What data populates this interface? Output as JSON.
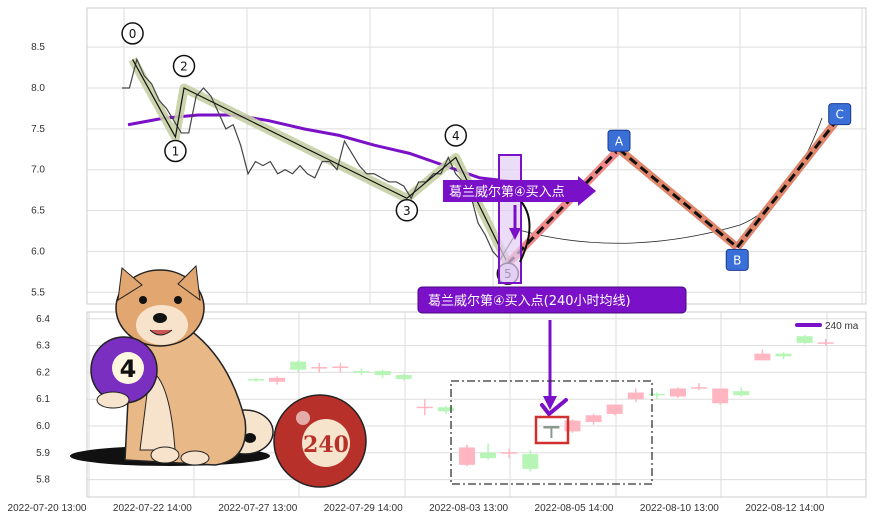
{
  "chart_data": [
    {
      "type": "line",
      "panel": "top",
      "ylim": [
        5.45,
        8.95
      ],
      "y_ticks": [
        "8.5",
        "8.0",
        "7.5",
        "7.0",
        "6.5",
        "6.0",
        "5.5"
      ],
      "grid": true,
      "price_series": [
        8.0,
        8.0,
        8.35,
        8.15,
        8.05,
        7.85,
        7.75,
        7.6,
        7.45,
        7.45,
        7.9,
        8.0,
        7.9,
        7.7,
        7.5,
        7.55,
        7.3,
        6.95,
        7.1,
        7.05,
        7.1,
        6.95,
        7.0,
        6.95,
        7.05,
        6.95,
        6.9,
        7.1,
        7.1,
        7.0,
        7.35,
        7.2,
        7.05,
        6.95,
        6.95,
        6.9,
        6.85,
        6.85,
        6.8,
        6.65,
        6.85,
        6.85,
        6.95,
        6.95,
        7.15,
        6.95,
        6.85,
        6.7,
        6.35,
        6.2,
        6.0,
        5.9,
        6.05,
        6.2
      ],
      "ma240_series": [
        7.55,
        7.63,
        7.67,
        7.67,
        7.6,
        7.5,
        7.42,
        7.3,
        7.2,
        7.05,
        6.9,
        6.85
      ],
      "wave_points": [
        {
          "label": "0",
          "time": "2022-07-20 17:00",
          "value": 8.35
        },
        {
          "label": "1",
          "time": "2022-07-21 13:00",
          "value": 7.4
        },
        {
          "label": "2",
          "time": "2022-07-21 17:00",
          "value": 8.0
        },
        {
          "label": "3",
          "time": "2022-07-28 23:00",
          "value": 6.65
        },
        {
          "label": "4",
          "time": "2022-07-30 09:00",
          "value": 7.15
        },
        {
          "label": "5",
          "time": "2022-08-01 20:00",
          "value": 5.85
        }
      ],
      "projection_points": [
        {
          "label": "A",
          "time": "2022-08-05 00:00",
          "value": 7.25
        },
        {
          "label": "B",
          "time": "2022-08-09 18:00",
          "value": 6.05
        },
        {
          "label": "C",
          "time": "2022-08-12 05:00",
          "value": 7.65
        }
      ],
      "annotation_arrow": "葛兰威尔第④买入点",
      "annotation_box": "葛兰威尔第④买入点(240小时均线)",
      "colors": {
        "price": "#444444",
        "ma240": "#7a10c8",
        "wave_highlight": "#c5cfa4",
        "projection": "#e0876b",
        "projection_first": "#f08a8a",
        "label_box": "#3a6fd8",
        "annotation": "#7a10c8"
      }
    },
    {
      "type": "candlestick",
      "panel": "bottom",
      "ylim": [
        5.76,
        6.42
      ],
      "y_ticks": [
        "6.4",
        "6.3",
        "6.2",
        "6.1",
        "6.0",
        "5.9",
        "5.8"
      ],
      "legend": {
        "label": "240 ma",
        "position": "top-right",
        "color": "#7a10c8"
      },
      "candles": [
        {
          "o": 6.17,
          "c": 6.175,
          "h": 6.18,
          "l": 6.165,
          "k": "green"
        },
        {
          "o": 6.165,
          "c": 6.18,
          "h": 6.185,
          "l": 6.155,
          "k": "red"
        },
        {
          "o": 6.21,
          "c": 6.24,
          "h": 6.245,
          "l": 6.2,
          "k": "green"
        },
        {
          "o": 6.215,
          "c": 6.22,
          "h": 6.235,
          "l": 6.2,
          "k": "red"
        },
        {
          "o": 6.22,
          "c": 6.222,
          "h": 6.235,
          "l": 6.2,
          "k": "red"
        },
        {
          "o": 6.2,
          "c": 6.205,
          "h": 6.215,
          "l": 6.19,
          "k": "green"
        },
        {
          "o": 6.19,
          "c": 6.205,
          "h": 6.21,
          "l": 6.18,
          "k": "green"
        },
        {
          "o": 6.175,
          "c": 6.19,
          "h": 6.195,
          "l": 6.17,
          "k": "green"
        },
        {
          "o": 6.07,
          "c": 6.072,
          "h": 6.1,
          "l": 6.04,
          "k": "red"
        },
        {
          "o": 6.055,
          "c": 6.07,
          "h": 6.075,
          "l": 6.045,
          "k": "green"
        },
        {
          "o": 5.855,
          "c": 5.92,
          "h": 5.93,
          "l": 5.85,
          "k": "red"
        },
        {
          "o": 5.88,
          "c": 5.9,
          "h": 5.935,
          "l": 5.875,
          "k": "green"
        },
        {
          "o": 5.9,
          "c": 5.902,
          "h": 5.915,
          "l": 5.88,
          "k": "red"
        },
        {
          "o": 5.84,
          "c": 5.895,
          "h": 5.91,
          "l": 5.83,
          "k": "green"
        },
        {
          "o": 5.995,
          "c": 6.0,
          "h": 6.0,
          "l": 5.955,
          "k": "gray"
        },
        {
          "o": 5.98,
          "c": 6.02,
          "h": 6.025,
          "l": 5.975,
          "k": "red"
        },
        {
          "o": 6.015,
          "c": 6.04,
          "h": 6.045,
          "l": 6.005,
          "k": "red"
        },
        {
          "o": 6.045,
          "c": 6.08,
          "h": 6.08,
          "l": 6.04,
          "k": "red"
        },
        {
          "o": 6.1,
          "c": 6.125,
          "h": 6.14,
          "l": 6.09,
          "k": "red"
        },
        {
          "o": 6.115,
          "c": 6.12,
          "h": 6.125,
          "l": 6.1,
          "k": "green"
        },
        {
          "o": 6.11,
          "c": 6.14,
          "h": 6.145,
          "l": 6.105,
          "k": "red"
        },
        {
          "o": 6.14,
          "c": 6.145,
          "h": 6.16,
          "l": 6.135,
          "k": "red"
        },
        {
          "o": 6.085,
          "c": 6.14,
          "h": 6.14,
          "l": 6.08,
          "k": "red"
        },
        {
          "o": 6.115,
          "c": 6.13,
          "h": 6.145,
          "l": 6.11,
          "k": "green"
        },
        {
          "o": 6.245,
          "c": 6.27,
          "h": 6.285,
          "l": 6.245,
          "k": "red"
        },
        {
          "o": 6.26,
          "c": 6.27,
          "h": 6.275,
          "l": 6.25,
          "k": "green"
        },
        {
          "o": 6.31,
          "c": 6.335,
          "h": 6.34,
          "l": 6.305,
          "k": "green"
        },
        {
          "o": 6.31,
          "c": 6.312,
          "h": 6.325,
          "l": 6.3,
          "k": "red"
        }
      ],
      "colors": {
        "red": "#ffb6c1",
        "green": "#b6f5b6",
        "gray": "#8a9a90",
        "highlight_box": "#d03030"
      }
    }
  ],
  "x_ticks": [
    "2022-07-20 13:00",
    "2022-07-22 14:00",
    "2022-07-27 13:00",
    "2022-07-29 14:00",
    "2022-08-03 13:00",
    "2022-08-05 14:00",
    "2022-08-10 13:00",
    "2022-08-12 14:00"
  ],
  "illustration": {
    "ball_left": "4",
    "ball_right": "240"
  }
}
